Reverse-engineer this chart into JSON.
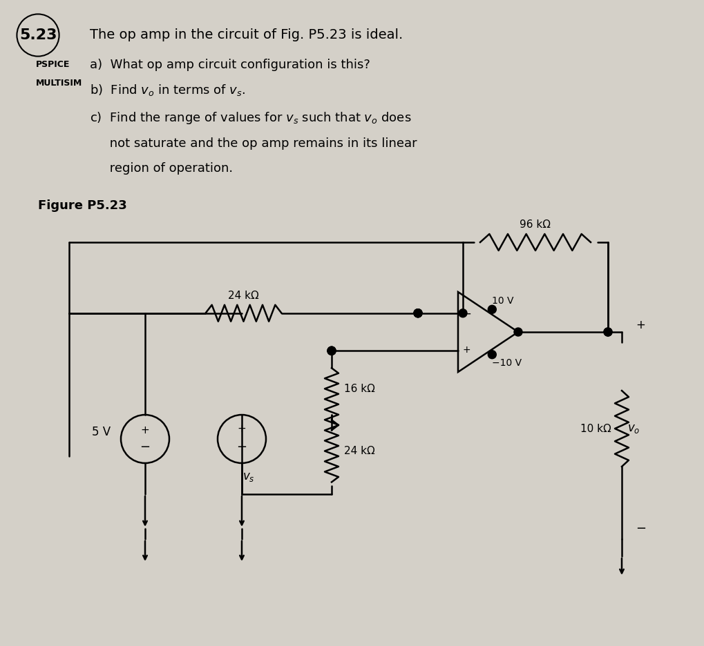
{
  "bg_color": "#d4d0c8",
  "text_color": "#000000",
  "title_number": "5.23",
  "title_text": "The op amp in the circuit of Fig. P5.23 is ideal.",
  "pspice_label": "PSPICE",
  "multisim_label": "MULTISIM",
  "part_a": "a)  What op amp circuit configuration is this?",
  "part_b": "b)  Find $v_o$ in terms of $v_s$.",
  "part_c1": "c)  Find the range of values for $v_s$ such that $v_o$ does",
  "part_c2": "     not saturate and the op amp remains in its linear",
  "part_c3": "     region of operation.",
  "figure_label": "Figure P5.23",
  "r1_label": "96 kΩ",
  "r2_label": "24 kΩ",
  "r3_label": "16 kΩ",
  "r4_label": "24 kΩ",
  "r5_label": "10 kΩ",
  "v1_label": "10 V",
  "v2_label": "−10 V",
  "v3_label": "5 V",
  "vs_label": "$v_s$",
  "vo_label": "$v_o$"
}
